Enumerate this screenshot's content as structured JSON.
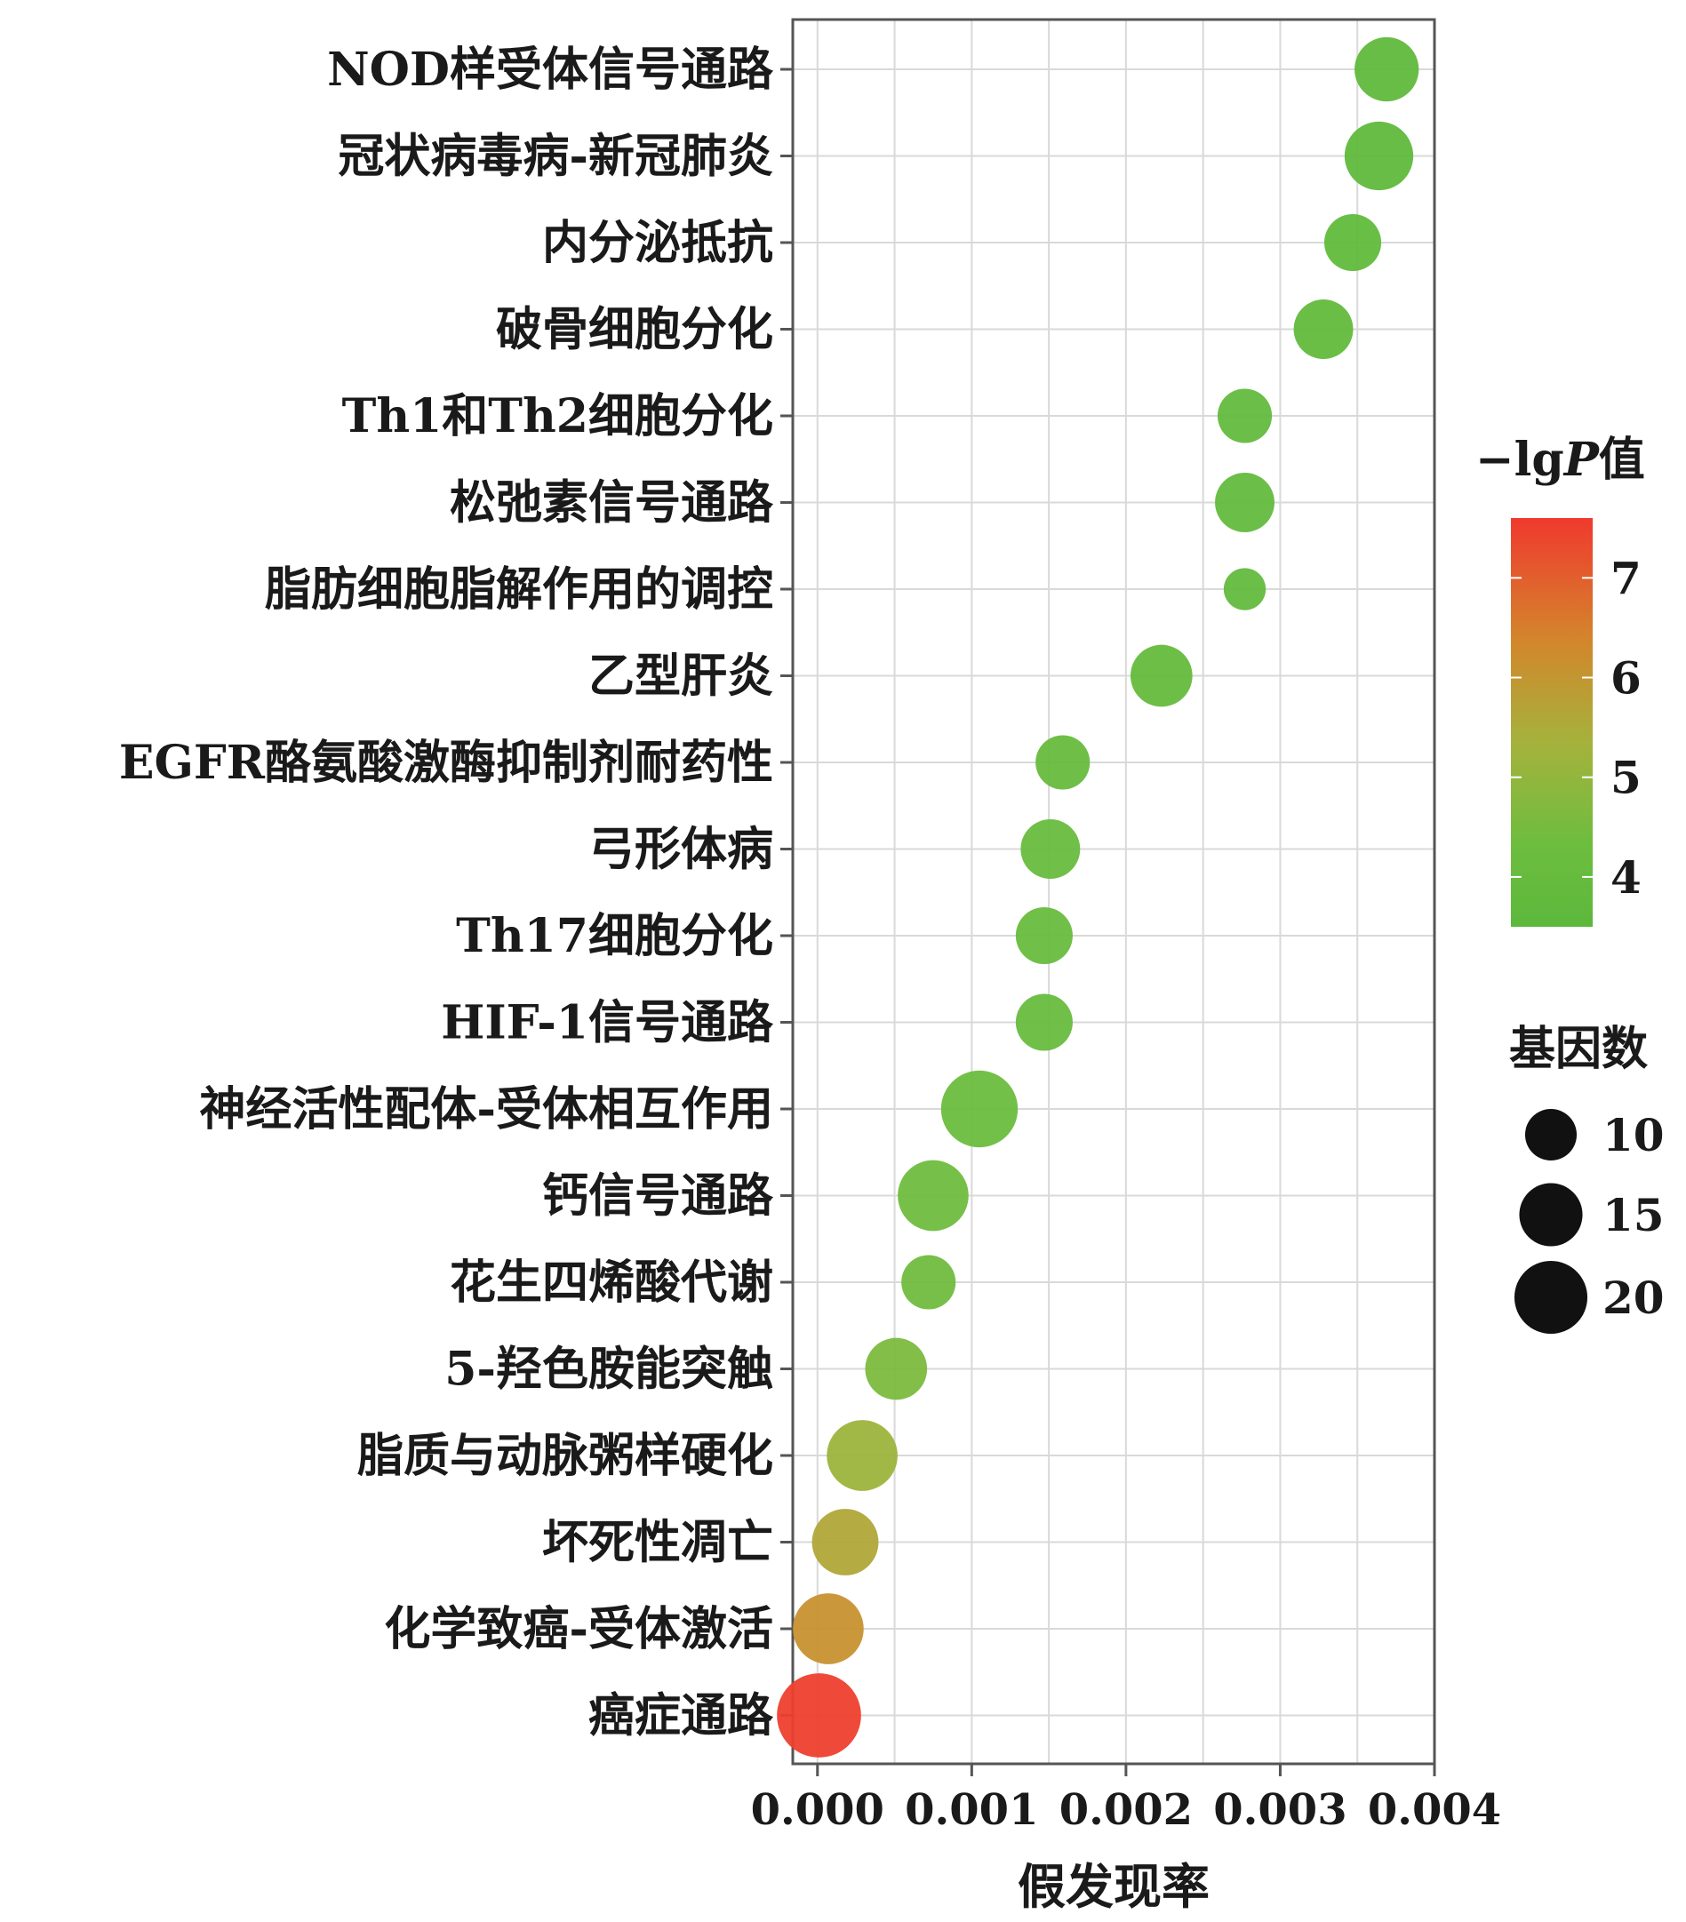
{
  "chart_data": {
    "type": "scatter",
    "xlabel": "假发现率",
    "ylabel": "",
    "xlim": [
      -0.00016,
      0.004
    ],
    "x_ticks": [
      "0.000",
      "0.001",
      "0.002",
      "0.003",
      "0.004"
    ],
    "x_tick_values": [
      0,
      0.001,
      0.002,
      0.003,
      0.004
    ],
    "grid": true,
    "color_legend": {
      "title": "−lg",
      "title_italic": "P",
      "title_suffix": "值",
      "range": [
        3.5,
        7.6
      ],
      "ticks": [
        7,
        6,
        5,
        4
      ],
      "colors": [
        "#f0392e",
        "#d3862c",
        "#a5b23c",
        "#6dbd3f",
        "#5cb83b"
      ]
    },
    "size_legend": {
      "title": "基因数",
      "values": [
        10,
        15,
        20
      ]
    },
    "points": [
      {
        "label": "NOD样受体信号通路",
        "x": 0.00369,
        "color_value": 3.7,
        "size": 14
      },
      {
        "label": "冠状病毒病-新冠肺炎",
        "x": 0.00364,
        "color_value": 3.7,
        "size": 16
      },
      {
        "label": "内分泌抵抗",
        "x": 0.00347,
        "color_value": 3.75,
        "size": 11
      },
      {
        "label": "破骨细胞分化",
        "x": 0.00328,
        "color_value": 3.8,
        "size": 12
      },
      {
        "label": "Th1和Th2细胞分化",
        "x": 0.00277,
        "color_value": 3.85,
        "size": 10
      },
      {
        "label": "松弛素信号通路",
        "x": 0.00277,
        "color_value": 3.85,
        "size": 12
      },
      {
        "label": "脂肪细胞脂解作用的调控",
        "x": 0.00277,
        "color_value": 3.85,
        "size": 6
      },
      {
        "label": "乙型肝炎",
        "x": 0.00223,
        "color_value": 3.95,
        "size": 13
      },
      {
        "label": "EGFR酪氨酸激酶抑制剂耐药性",
        "x": 0.00159,
        "color_value": 4.05,
        "size": 10
      },
      {
        "label": "弓形体病",
        "x": 0.00151,
        "color_value": 4.1,
        "size": 12
      },
      {
        "label": "Th17细胞分化",
        "x": 0.00147,
        "color_value": 4.1,
        "size": 11
      },
      {
        "label": "HIF-1信号通路",
        "x": 0.00147,
        "color_value": 4.1,
        "size": 11
      },
      {
        "label": "神经活性配体-受体相互作用",
        "x": 0.00105,
        "color_value": 4.25,
        "size": 20
      },
      {
        "label": "钙信号通路",
        "x": 0.00075,
        "color_value": 4.35,
        "size": 17
      },
      {
        "label": "花生四烯酸代谢",
        "x": 0.00072,
        "color_value": 4.4,
        "size": 10
      },
      {
        "label": "5-羟色胺能突触",
        "x": 0.00051,
        "color_value": 4.6,
        "size": 13
      },
      {
        "label": "脂质与动脉粥样硬化",
        "x": 0.00029,
        "color_value": 5.2,
        "size": 17
      },
      {
        "label": "坏死性凋亡",
        "x": 0.00018,
        "color_value": 5.6,
        "size": 15
      },
      {
        "label": "化学致癌-受体激活",
        "x": 7e-05,
        "color_value": 6.1,
        "size": 17
      },
      {
        "label": "癌症通路",
        "x": 1e-05,
        "color_value": 7.5,
        "size": 24
      }
    ]
  }
}
